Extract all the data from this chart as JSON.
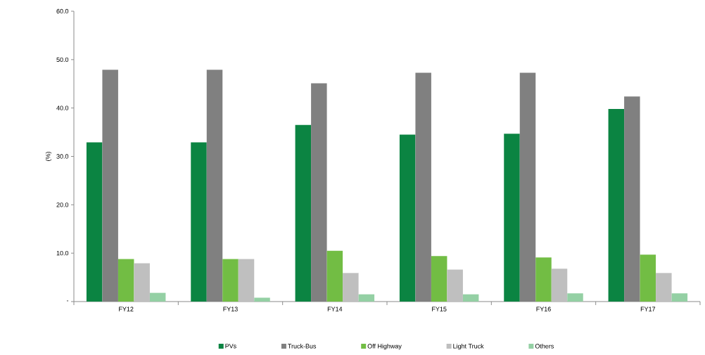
{
  "chart_data": {
    "type": "bar",
    "ylabel": "(%)",
    "categories": [
      "FY12",
      "FY13",
      "FY14",
      "FY15",
      "FY16",
      "FY17"
    ],
    "series": [
      {
        "name": "PVs",
        "color": "#0b8442",
        "values": [
          32.9,
          32.9,
          36.5,
          34.5,
          34.7,
          39.8
        ]
      },
      {
        "name": "Truck-Bus",
        "color": "#808080",
        "values": [
          47.9,
          47.9,
          45.1,
          47.3,
          47.3,
          42.4
        ]
      },
      {
        "name": "Off Highway",
        "color": "#72bd44",
        "values": [
          8.8,
          8.8,
          10.5,
          9.4,
          9.1,
          9.7
        ]
      },
      {
        "name": "Light Truck",
        "color": "#bfbfbf",
        "values": [
          7.9,
          8.8,
          5.9,
          6.6,
          6.8,
          5.9
        ]
      },
      {
        "name": "Others",
        "color": "#94d0a4",
        "values": [
          1.8,
          0.8,
          1.5,
          1.5,
          1.7,
          1.7
        ]
      }
    ],
    "ylim": [
      0,
      60
    ],
    "yticks": [
      {
        "value": 0,
        "label": "-"
      },
      {
        "value": 10,
        "label": "10.0"
      },
      {
        "value": 20,
        "label": "20.0"
      },
      {
        "value": 30,
        "label": "30.0"
      },
      {
        "value": 40,
        "label": "40.0"
      },
      {
        "value": 50,
        "label": "50.0"
      },
      {
        "value": 60,
        "label": "60.0"
      }
    ],
    "grid": false,
    "legend": "bottom"
  }
}
